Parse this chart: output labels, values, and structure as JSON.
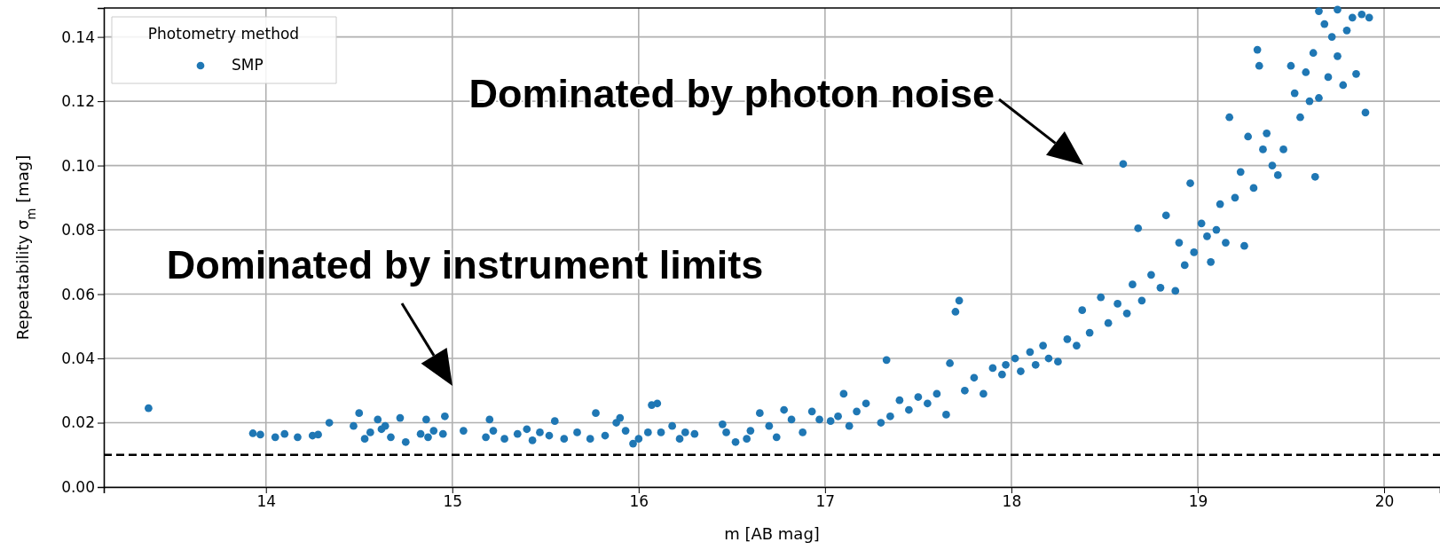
{
  "chart_data": {
    "type": "scatter",
    "xlabel": "m [AB mag]",
    "ylabel": "Repeatability σ$_{m}$ [mag]",
    "legend_title": "Photometry method",
    "legend": "top left",
    "grid": true,
    "marker": "circle",
    "xlim": [
      13.13,
      20.3
    ],
    "ylim": [
      0,
      0.149
    ],
    "xticks": [
      14,
      15,
      16,
      17,
      18,
      19,
      20
    ],
    "yticks": [
      {
        "value": 0,
        "label": "0.00"
      },
      {
        "value": 0.02,
        "label": "0.02"
      },
      {
        "value": 0.04,
        "label": "0.04"
      },
      {
        "value": 0.06,
        "label": "0.06"
      },
      {
        "value": 0.08,
        "label": "0.08"
      },
      {
        "value": 0.1,
        "label": "0.10"
      },
      {
        "value": 0.12,
        "label": "0.12"
      },
      {
        "value": 0.14,
        "label": "0.14"
      }
    ],
    "ref_lines": [
      {
        "axis": "y",
        "value": 0.01,
        "color": "#000000",
        "line_style": "dashed"
      }
    ],
    "annotations": [
      "Dominated by photon noise",
      "Dominated by instrument limits"
    ],
    "series": [
      {
        "name": "SMP",
        "color": "#1f77b4",
        "x": [
          13.37,
          13.93,
          13.97,
          14.05,
          14.1,
          14.17,
          14.25,
          14.28,
          14.34,
          14.47,
          14.5,
          14.53,
          14.56,
          14.6,
          14.62,
          14.64,
          14.67,
          14.72,
          14.75,
          14.83,
          14.86,
          14.87,
          14.9,
          14.96,
          14.95,
          15.06,
          15.18,
          15.2,
          15.22,
          15.28,
          15.35,
          15.4,
          15.43,
          15.47,
          15.52,
          15.55,
          15.6,
          15.67,
          15.74,
          15.77,
          15.82,
          15.88,
          15.9,
          15.93,
          15.97,
          16.0,
          16.05,
          16.07,
          16.1,
          16.12,
          16.18,
          16.22,
          16.25,
          16.3,
          16.45,
          16.47,
          16.52,
          16.58,
          16.6,
          16.65,
          16.7,
          16.74,
          16.78,
          16.82,
          16.88,
          16.93,
          16.97,
          17.03,
          17.07,
          17.1,
          17.13,
          17.17,
          17.22,
          17.3,
          17.33,
          17.35,
          17.4,
          17.45,
          17.5,
          17.55,
          17.6,
          17.65,
          17.67,
          17.7,
          17.72,
          17.75,
          17.8,
          17.85,
          17.9,
          17.95,
          17.97,
          18.02,
          18.05,
          18.1,
          18.13,
          18.17,
          18.2,
          18.25,
          18.3,
          18.35,
          18.38,
          18.42,
          18.48,
          18.52,
          18.57,
          18.6,
          18.62,
          18.65,
          18.68,
          18.7,
          18.75,
          18.8,
          18.83,
          18.88,
          18.9,
          18.93,
          18.96,
          18.98,
          19.02,
          19.05,
          19.07,
          19.1,
          19.12,
          19.15,
          19.17,
          19.2,
          19.23,
          19.25,
          19.27,
          19.3,
          19.32,
          19.33,
          19.35,
          19.37,
          19.4,
          19.43,
          19.46,
          19.5,
          19.52,
          19.55,
          19.58,
          19.6,
          19.63,
          19.62,
          19.65,
          19.68,
          19.7,
          19.72,
          19.75,
          19.78,
          19.8,
          19.83,
          19.85,
          19.88,
          19.9,
          19.92,
          19.65,
          19.75
        ],
        "values": [
          0.0245,
          0.0167,
          0.0163,
          0.0155,
          0.0165,
          0.0155,
          0.016,
          0.0163,
          0.02,
          0.019,
          0.023,
          0.015,
          0.017,
          0.021,
          0.018,
          0.019,
          0.0155,
          0.0215,
          0.014,
          0.0165,
          0.021,
          0.0155,
          0.0175,
          0.022,
          0.0165,
          0.0175,
          0.0155,
          0.021,
          0.0175,
          0.015,
          0.0165,
          0.018,
          0.0145,
          0.017,
          0.016,
          0.0205,
          0.015,
          0.017,
          0.015,
          0.023,
          0.016,
          0.02,
          0.0215,
          0.0175,
          0.0135,
          0.015,
          0.017,
          0.0255,
          0.026,
          0.017,
          0.019,
          0.015,
          0.017,
          0.0165,
          0.0195,
          0.017,
          0.014,
          0.015,
          0.0175,
          0.023,
          0.019,
          0.0155,
          0.024,
          0.021,
          0.017,
          0.0235,
          0.021,
          0.0205,
          0.022,
          0.029,
          0.019,
          0.0235,
          0.026,
          0.02,
          0.0395,
          0.022,
          0.027,
          0.024,
          0.028,
          0.026,
          0.029,
          0.0225,
          0.0385,
          0.0545,
          0.058,
          0.03,
          0.034,
          0.029,
          0.037,
          0.035,
          0.038,
          0.04,
          0.036,
          0.042,
          0.038,
          0.044,
          0.04,
          0.039,
          0.046,
          0.044,
          0.055,
          0.048,
          0.059,
          0.051,
          0.057,
          0.1005,
          0.054,
          0.063,
          0.0805,
          0.058,
          0.066,
          0.062,
          0.0845,
          0.061,
          0.076,
          0.069,
          0.0945,
          0.073,
          0.082,
          0.078,
          0.07,
          0.08,
          0.088,
          0.076,
          0.115,
          0.09,
          0.098,
          0.075,
          0.109,
          0.093,
          0.136,
          0.131,
          0.105,
          0.11,
          0.1,
          0.097,
          0.105,
          0.131,
          0.1225,
          0.115,
          0.129,
          0.12,
          0.0965,
          0.135,
          0.121,
          0.144,
          0.1275,
          0.14,
          0.134,
          0.125,
          0.142,
          0.146,
          0.1285,
          0.147,
          0.1165,
          0.146,
          0.148,
          0.1485
        ]
      }
    ]
  }
}
